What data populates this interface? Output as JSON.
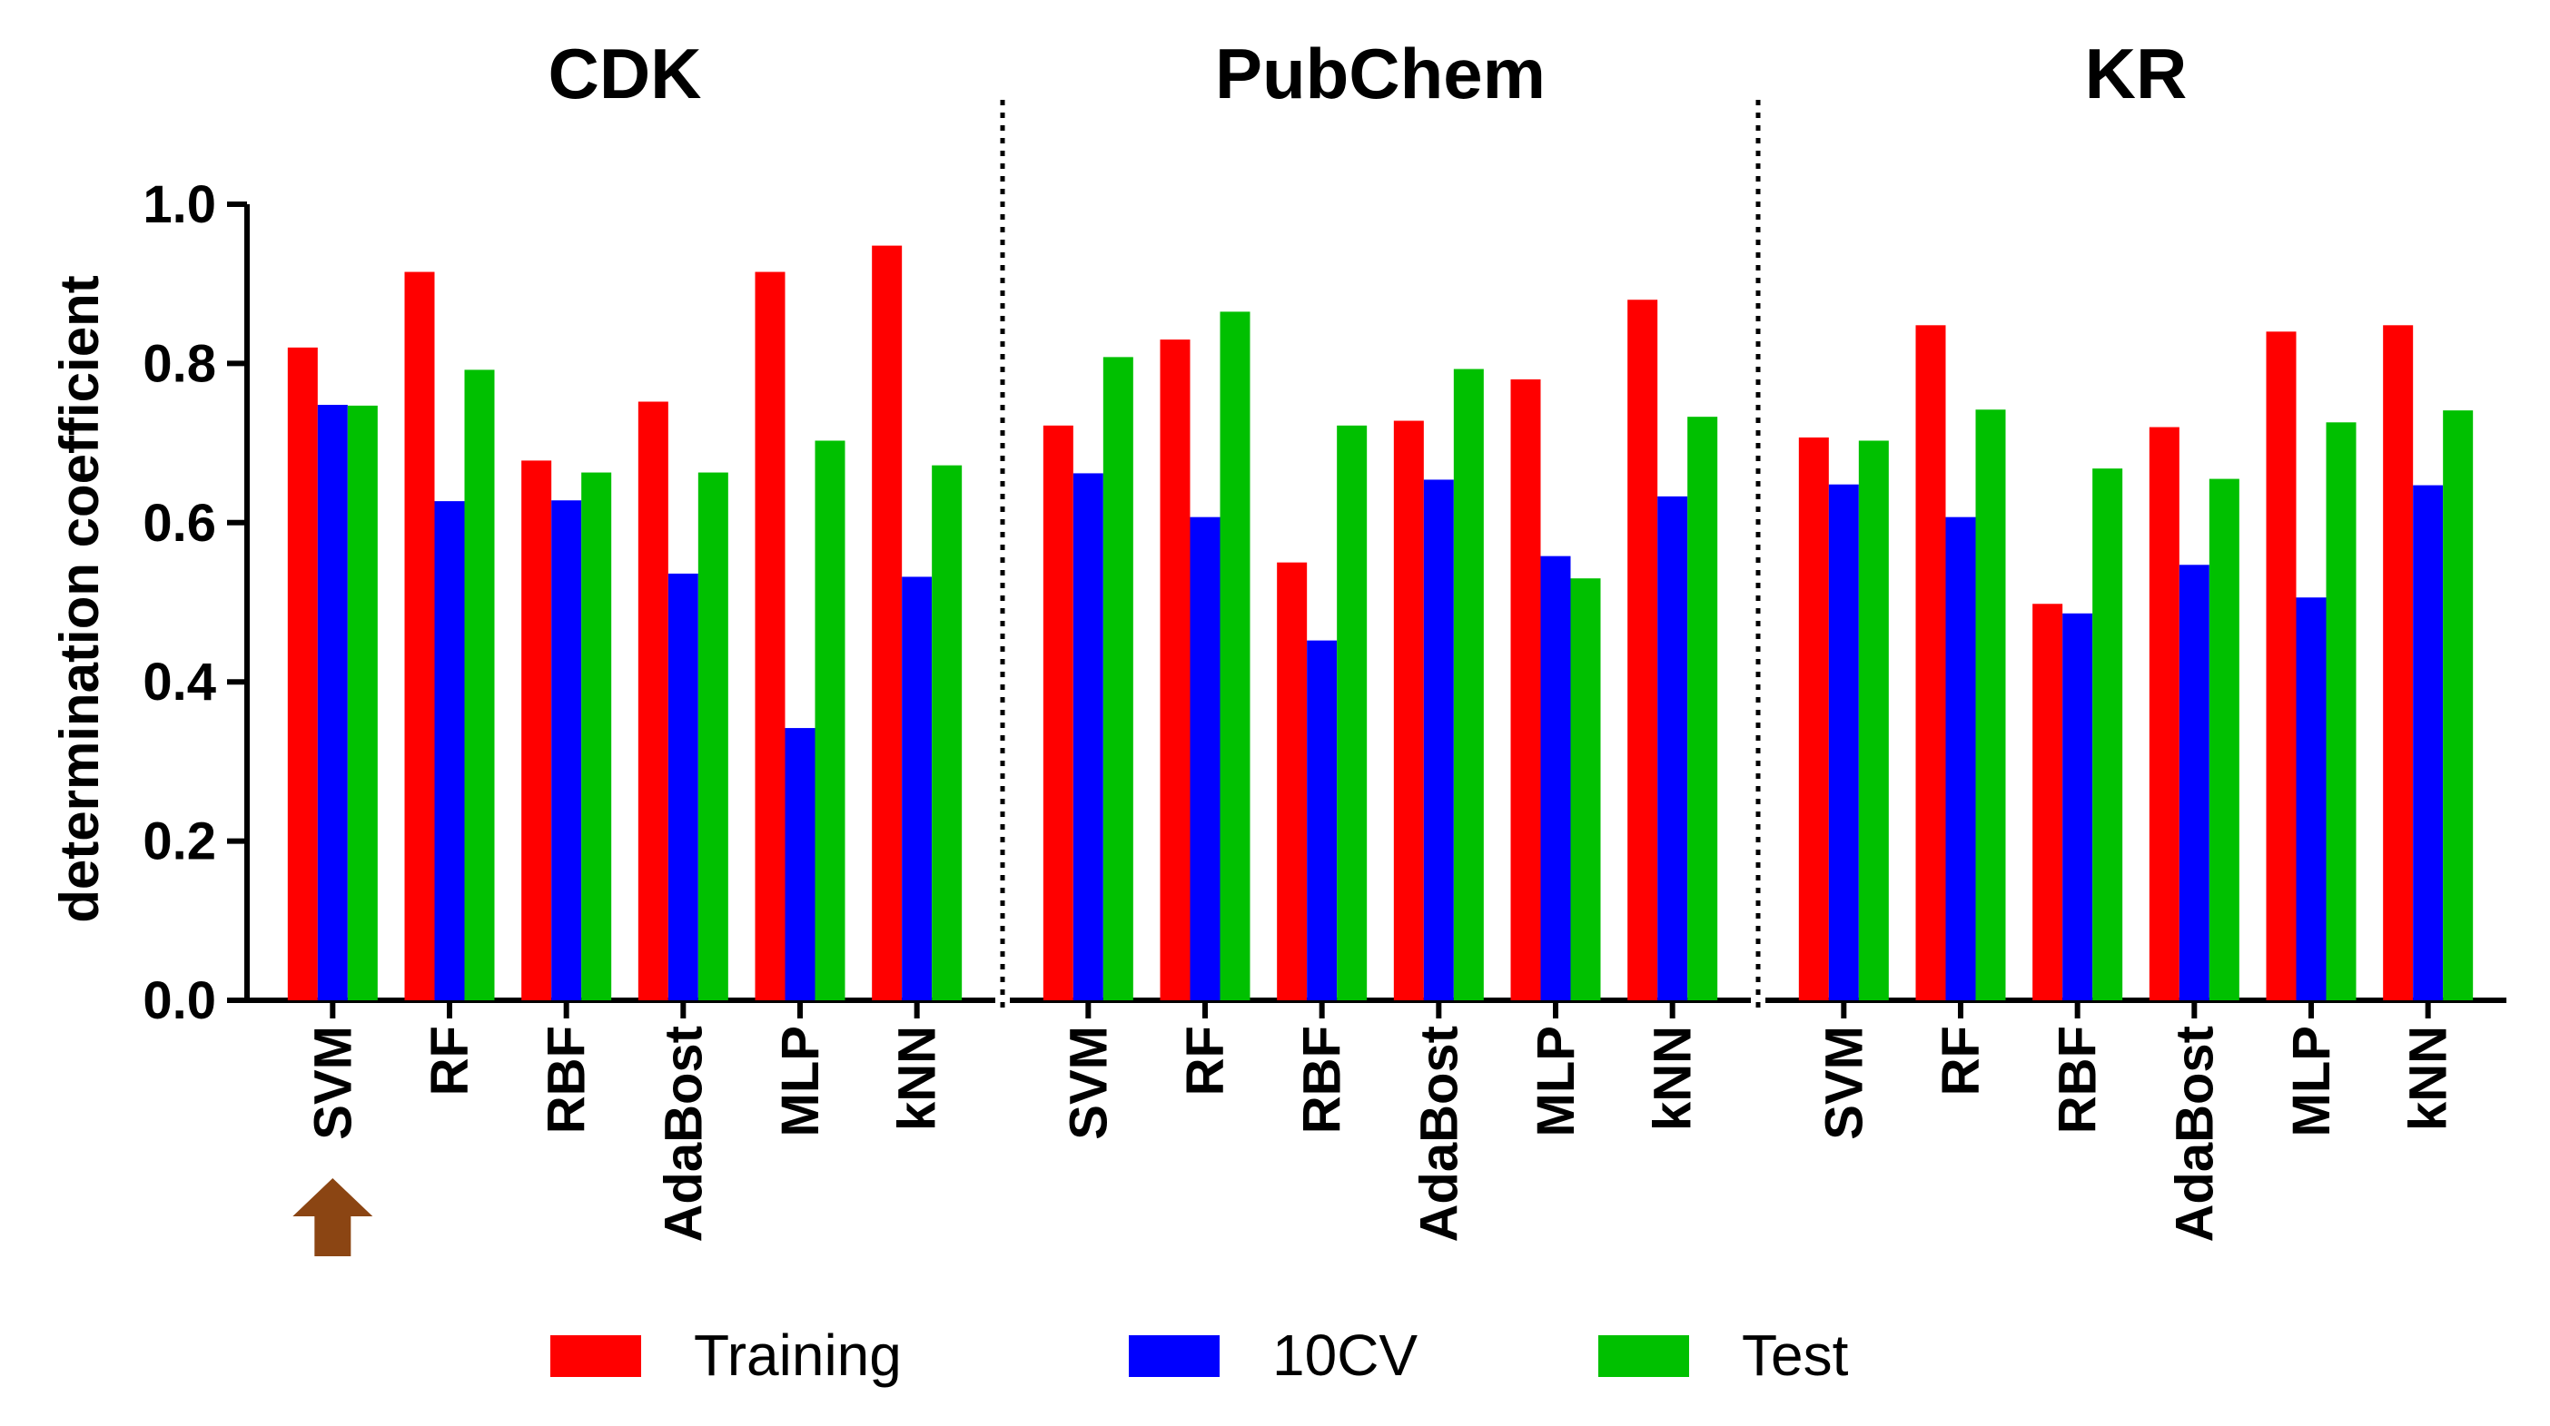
{
  "chart_data": {
    "type": "bar",
    "ylabel": "determination coefficient",
    "ylim": [
      0,
      1.0
    ],
    "yticks": [
      "0.0",
      "0.2",
      "0.4",
      "0.6",
      "0.8",
      "1.0"
    ],
    "groups": [
      {
        "title": "CDK",
        "categories": [
          "SVM",
          "RF",
          "RBF",
          "AdaBost",
          "MLP",
          "kNN"
        ],
        "series": [
          {
            "name": "Training",
            "values": [
              0.82,
              0.915,
              0.678,
              0.752,
              0.915,
              0.948
            ]
          },
          {
            "name": "10CV",
            "values": [
              0.748,
              0.627,
              0.628,
              0.536,
              0.342,
              0.532
            ]
          },
          {
            "name": "Test",
            "values": [
              0.747,
              0.792,
              0.663,
              0.663,
              0.703,
              0.672
            ]
          }
        ]
      },
      {
        "title": "PubChem",
        "categories": [
          "SVM",
          "RF",
          "RBF",
          "AdaBost",
          "MLP",
          "kNN"
        ],
        "series": [
          {
            "name": "Training",
            "values": [
              0.722,
              0.83,
              0.55,
              0.728,
              0.78,
              0.88
            ]
          },
          {
            "name": "10CV",
            "values": [
              0.662,
              0.607,
              0.452,
              0.654,
              0.558,
              0.633
            ]
          },
          {
            "name": "Test",
            "values": [
              0.808,
              0.865,
              0.722,
              0.793,
              0.53,
              0.733
            ]
          }
        ]
      },
      {
        "title": "KR",
        "categories": [
          "SVM",
          "RF",
          "RBF",
          "AdaBost",
          "MLP",
          "kNN"
        ],
        "series": [
          {
            "name": "Training",
            "values": [
              0.707,
              0.848,
              0.498,
              0.72,
              0.84,
              0.848
            ]
          },
          {
            "name": "10CV",
            "values": [
              0.648,
              0.607,
              0.486,
              0.547,
              0.506,
              0.647
            ]
          },
          {
            "name": "Test",
            "values": [
              0.703,
              0.742,
              0.668,
              0.655,
              0.726,
              0.741
            ]
          }
        ]
      }
    ],
    "legend": [
      {
        "name": "Training",
        "color": "#ff0000"
      },
      {
        "name": "10CV",
        "color": "#0000ff"
      },
      {
        "name": "Test",
        "color": "#00c000"
      }
    ],
    "legend_position": "bottom",
    "highlight_marker": {
      "category": "SVM",
      "group": "CDK",
      "shape": "up-arrow",
      "color": "#8b4513"
    }
  }
}
